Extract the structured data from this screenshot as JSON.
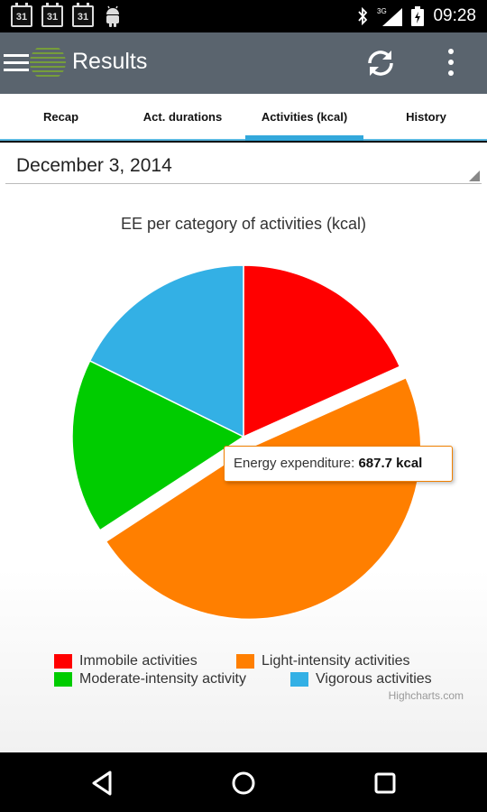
{
  "status_bar": {
    "time": "09:28",
    "calendar_icons": [
      "31",
      "31",
      "31"
    ],
    "network": "3G",
    "icons": [
      "calendar-icon",
      "android-icon",
      "bluetooth-icon",
      "signal-icon",
      "battery-icon"
    ]
  },
  "app_bar": {
    "title": "Results",
    "icons": [
      "menu-icon",
      "app-logo",
      "refresh-icon",
      "overflow-menu-icon"
    ]
  },
  "tabs": [
    {
      "label": "Recap",
      "active": false
    },
    {
      "label": "Act. durations",
      "active": false
    },
    {
      "label": "Activities (kcal)",
      "active": true
    },
    {
      "label": "History",
      "active": false
    }
  ],
  "date_select": {
    "value": "December 3, 2014"
  },
  "tooltip": {
    "label": "Energy expenditure:",
    "value": "687.7 kcal"
  },
  "credits": "Highcharts.com",
  "colors": {
    "red": "#ff0000",
    "orange": "#ff7f00",
    "green": "#00cc00",
    "blue": "#33b0e5",
    "app_bar": "#5a646e",
    "accent": "#33a8db"
  },
  "chart_data": {
    "type": "pie",
    "title": "EE per category of activities (kcal)",
    "series": [
      {
        "name": "Immobile activities",
        "value_percent": 18.3,
        "color": "#ff0000"
      },
      {
        "name": "Light-intensity activities",
        "value_percent": 47.5,
        "color": "#ff7f00",
        "value": 687.7,
        "unit": "kcal",
        "sliced": true
      },
      {
        "name": "Moderate-intensity activity",
        "value_percent": 16.5,
        "color": "#00cc00"
      },
      {
        "name": "Vigorous activities",
        "value_percent": 17.7,
        "color": "#33b0e5"
      }
    ],
    "legend_position": "bottom"
  },
  "nav_bar": {
    "icons": [
      "back-icon",
      "home-icon",
      "recents-icon"
    ]
  }
}
